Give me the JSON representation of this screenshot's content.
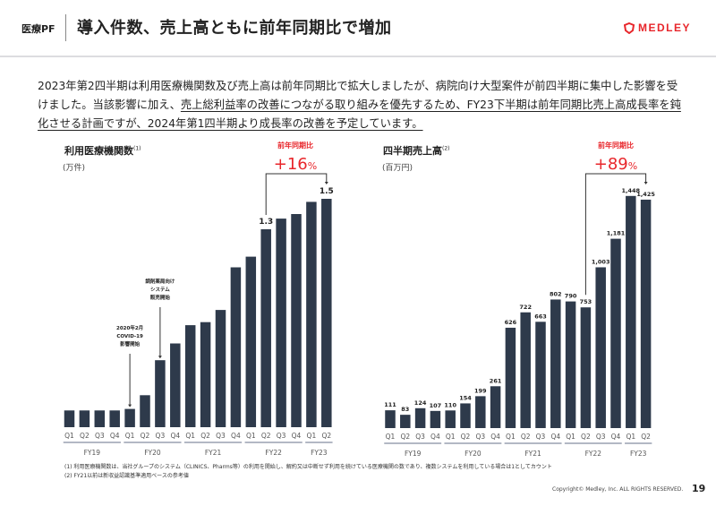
{
  "header": {
    "section": "医療PF",
    "title": "導入件数、売上高ともに前年同期比で増加",
    "logo_text": "MEDLEY",
    "accent_color": "#e8262b"
  },
  "lead": {
    "part1": "2023年第2四半期は利用医療機関数及び売上高は前年同期比で拡大しましたが、病院向け大型案件が前四半期に集中した影響を受けました。当該影響に加え、",
    "part2_underlined": "売上総利益率の改善につながる取り組みを優先するため、FY23下半期は前年同期比売上高成長率を鈍化させる計画ですが、2024年第1四半期より成長率の改善を予定しています。"
  },
  "chart_data": [
    {
      "type": "bar",
      "title": "利用医療機関数",
      "title_note": "(1)",
      "unit": "(万件)",
      "bar_color": "#2e3a4b",
      "categories": [
        "Q1",
        "Q2",
        "Q3",
        "Q4",
        "Q1",
        "Q2",
        "Q3",
        "Q4",
        "Q1",
        "Q2",
        "Q3",
        "Q4",
        "Q1",
        "Q2",
        "Q3",
        "Q4",
        "Q1",
        "Q2"
      ],
      "groups": [
        {
          "label": "FY19",
          "count": 4
        },
        {
          "label": "FY20",
          "count": 4
        },
        {
          "label": "FY21",
          "count": 4
        },
        {
          "label": "FY22",
          "count": 4
        },
        {
          "label": "FY23",
          "count": 2
        }
      ],
      "values": [
        0.11,
        0.11,
        0.11,
        0.11,
        0.12,
        0.21,
        0.44,
        0.55,
        0.67,
        0.69,
        0.77,
        1.05,
        1.12,
        1.3,
        1.37,
        1.4,
        1.48,
        1.5
      ],
      "data_labels": {
        "13": "1.3",
        "17": "1.5"
      },
      "annotations": [
        {
          "index": 4,
          "lines": [
            "2020年2月",
            "COVID-19",
            "影響開始"
          ]
        },
        {
          "index": 6,
          "lines": [
            "調剤薬局向け",
            "システム",
            "販売開始"
          ]
        }
      ],
      "yoy": {
        "label": "前年同期比",
        "value": "+16",
        "suffix": "%",
        "from_index": 13,
        "to_index": 17
      }
    },
    {
      "type": "bar",
      "title": "四半期売上高",
      "title_note": "(2)",
      "unit": "(百万円)",
      "bar_color": "#2e3a4b",
      "categories": [
        "Q1",
        "Q2",
        "Q3",
        "Q4",
        "Q1",
        "Q2",
        "Q3",
        "Q4",
        "Q1",
        "Q2",
        "Q3",
        "Q4",
        "Q1",
        "Q2",
        "Q3",
        "Q4",
        "Q1",
        "Q2"
      ],
      "groups": [
        {
          "label": "FY19",
          "count": 4
        },
        {
          "label": "FY20",
          "count": 4
        },
        {
          "label": "FY21",
          "count": 4
        },
        {
          "label": "FY22",
          "count": 4
        },
        {
          "label": "FY23",
          "count": 2
        }
      ],
      "values": [
        111,
        83,
        124,
        107,
        110,
        154,
        199,
        261,
        626,
        722,
        663,
        802,
        790,
        753,
        1003,
        1181,
        1448,
        1425
      ],
      "value_labels": [
        "111",
        "83",
        "124",
        "107",
        "110",
        "154",
        "199",
        "261",
        "626",
        "722",
        "663",
        "802",
        "790",
        "753",
        "1,003",
        "1,181",
        "1,448",
        "1,425"
      ],
      "yoy": {
        "label": "前年同期比",
        "value": "+89",
        "suffix": "%",
        "from_index": 13,
        "to_index": 17
      }
    }
  ],
  "footnotes": [
    "(1) 利用医療機関数は、当社グループのシステム（CLINICS、Pharms等）の利用を開始し、解約又は中断せず利用を続けている医療機関の数であり、複数システムを利用している場合は1としてカウント",
    "(2) FY21以前は新収益認識基準適用ベースの参考値"
  ],
  "footer": {
    "copyright": "Copyright© Medley, Inc. ALL RIGHTS RESERVED.",
    "page": "19"
  }
}
